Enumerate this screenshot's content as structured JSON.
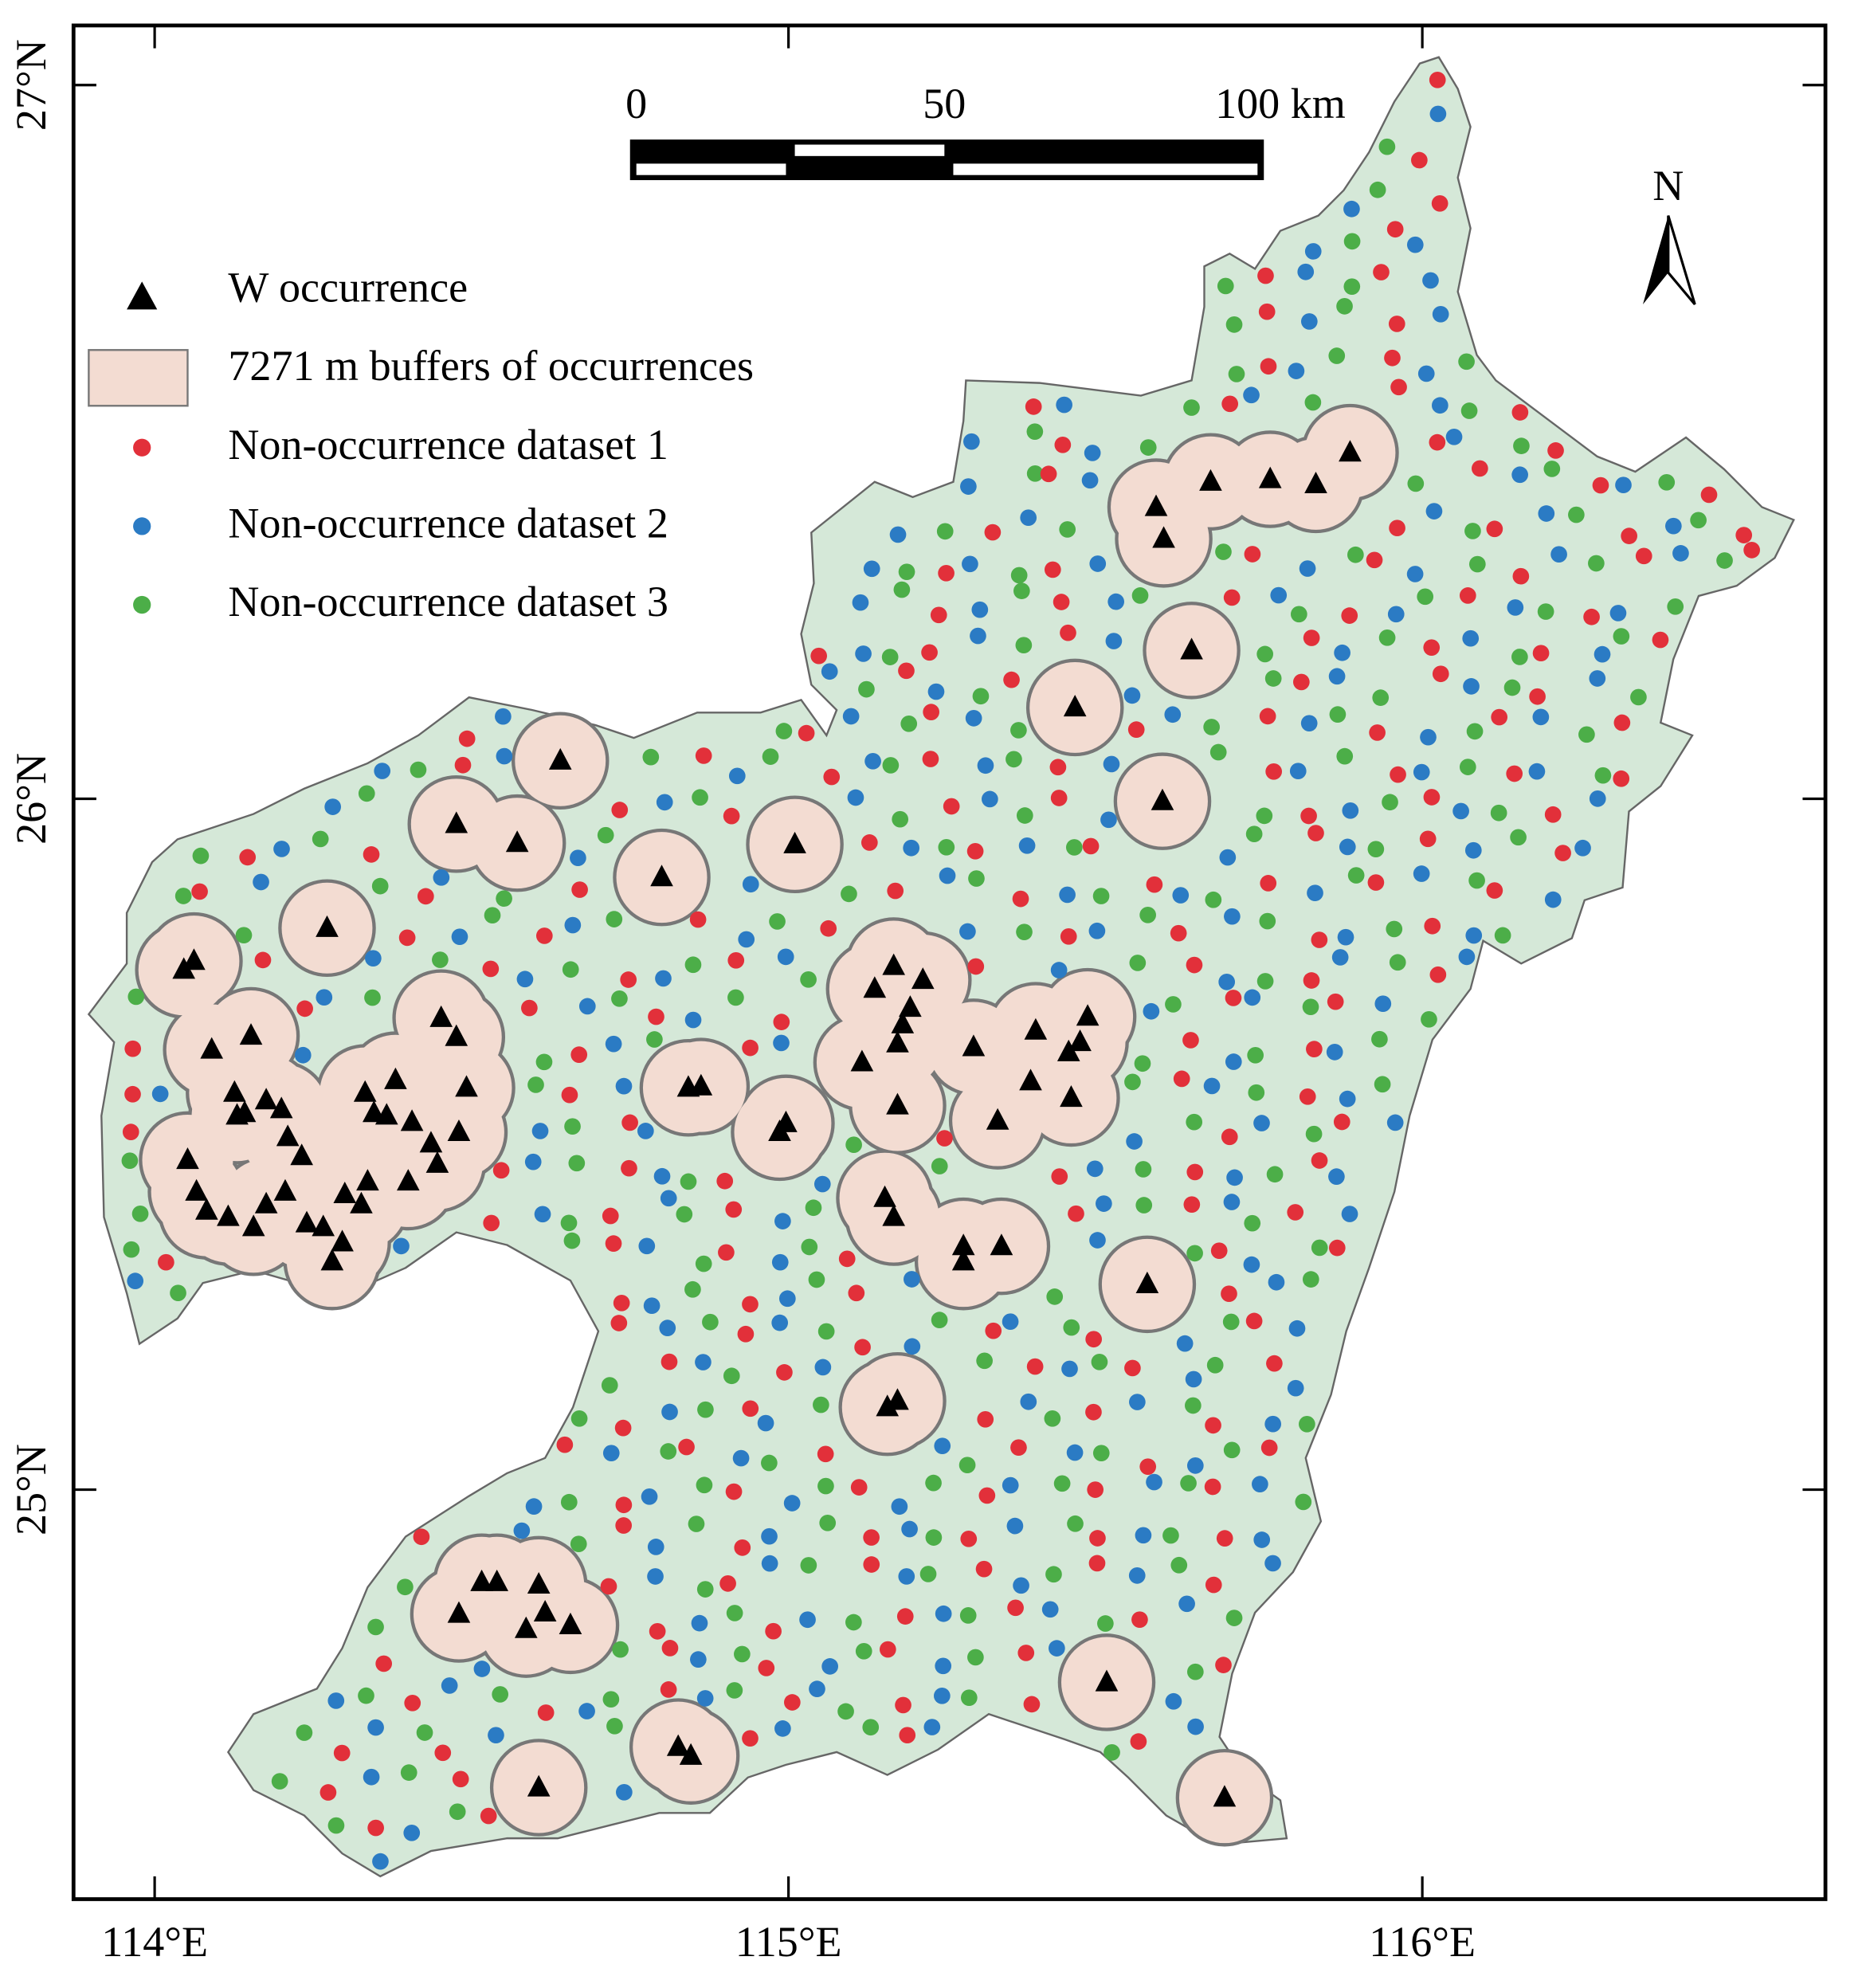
{
  "map": {
    "legend": [
      "W occurrence",
      "7271 m buffers of occurrences",
      "Non-occurrence dataset 1",
      "Non-occurrence dataset 2",
      "Non-occurrence dataset 3"
    ],
    "scale_bar": [
      "0",
      "50",
      "100 km"
    ],
    "north": "N",
    "lat_labels": [
      "27°N",
      "26°N",
      "25°N"
    ],
    "lon_labels": [
      "114°E",
      "115°E",
      "116°E"
    ]
  }
}
